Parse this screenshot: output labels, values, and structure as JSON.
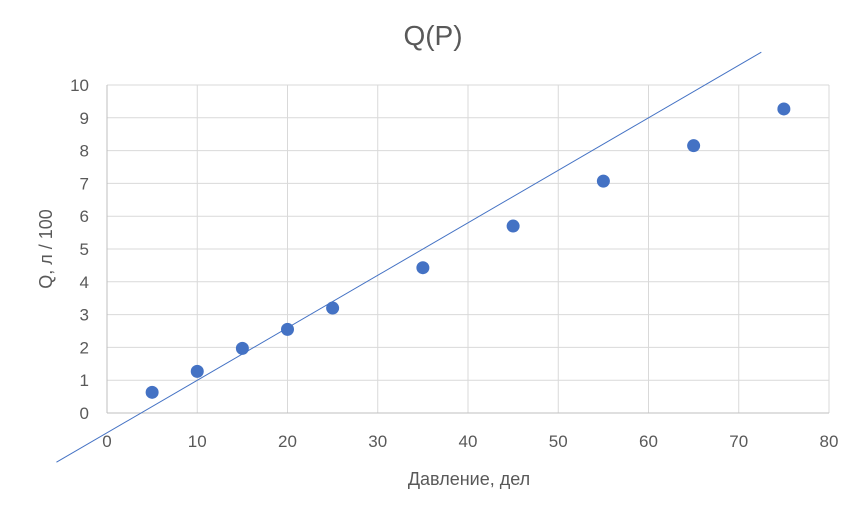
{
  "chart_data": {
    "type": "scatter",
    "title": "Q(P)",
    "xlabel": "Давление, дел",
    "ylabel": "Q,  л / 100",
    "xlim": [
      0,
      80
    ],
    "ylim": [
      0,
      10
    ],
    "xticks": [
      0,
      10,
      20,
      30,
      40,
      50,
      60,
      70,
      80
    ],
    "yticks": [
      0,
      1,
      2,
      3,
      4,
      5,
      6,
      7,
      8,
      9,
      10
    ],
    "grid": true,
    "legend": "none",
    "series": [
      {
        "x": [
          5,
          10,
          15,
          20,
          25,
          35,
          45,
          55,
          65,
          75
        ],
        "y": [
          0.63,
          1.27,
          1.97,
          2.55,
          3.2,
          4.43,
          5.7,
          7.07,
          8.15,
          9.27
        ],
        "color": "#4472C4"
      }
    ],
    "trendline": {
      "type": "linear",
      "from": [
        -5.6,
        -1.5
      ],
      "to": [
        72.5,
        11.0
      ],
      "color": "#4472C4"
    }
  }
}
